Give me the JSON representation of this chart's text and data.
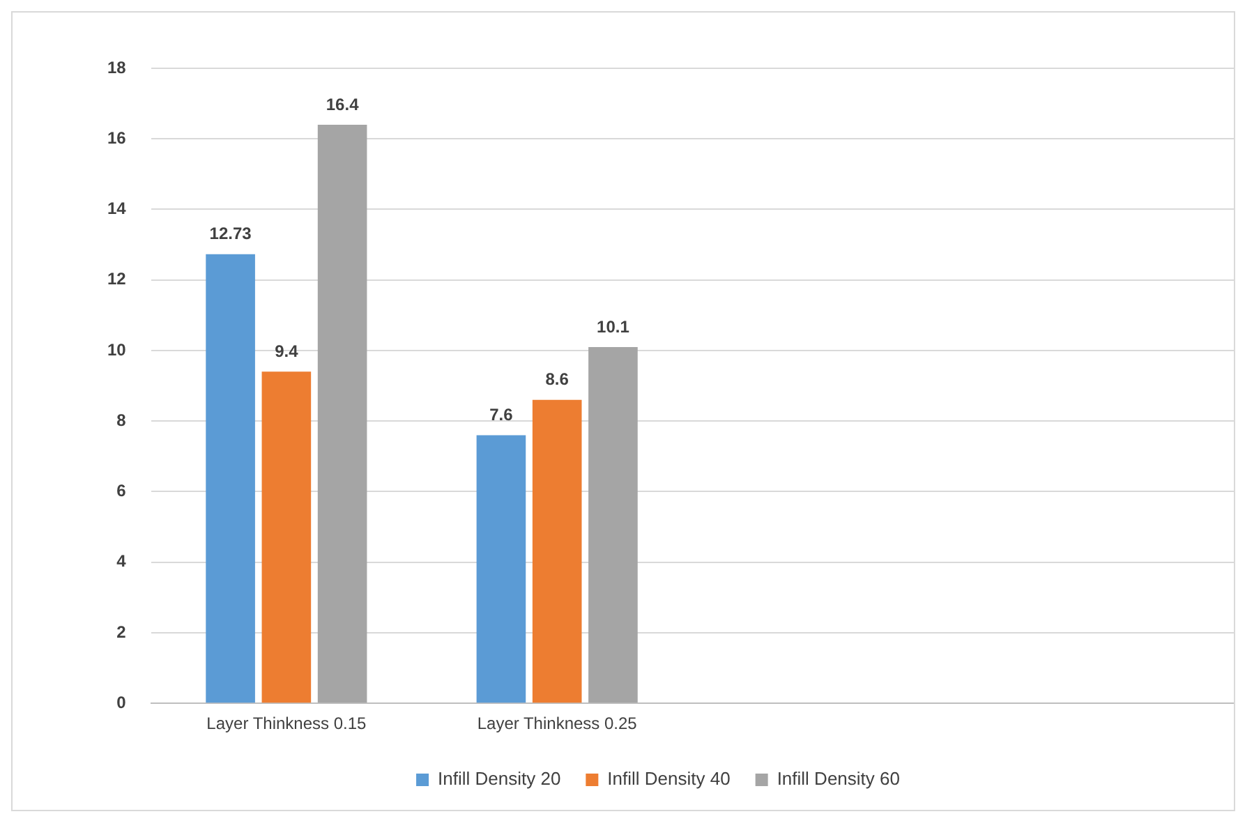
{
  "chart_data": {
    "type": "bar",
    "categories": [
      "Layer Thinkness 0.15",
      "Layer Thinkness 0.25",
      null,
      null
    ],
    "series": [
      {
        "name": "Infill Density 20",
        "color": "#5b9bd5",
        "values": [
          12.73,
          7.6,
          null,
          null
        ]
      },
      {
        "name": "Infill Density 40",
        "color": "#ed7d31",
        "values": [
          9.4,
          8.6,
          null,
          null
        ]
      },
      {
        "name": "Infill Density 60",
        "color": "#a5a5a5",
        "values": [
          16.4,
          10.1,
          null,
          null
        ]
      }
    ],
    "ylim": [
      0,
      18
    ],
    "yticks": [
      0,
      2,
      4,
      6,
      8,
      10,
      12,
      14,
      16,
      18
    ],
    "grid": "y",
    "legend": "bottom",
    "data_labels": true
  }
}
